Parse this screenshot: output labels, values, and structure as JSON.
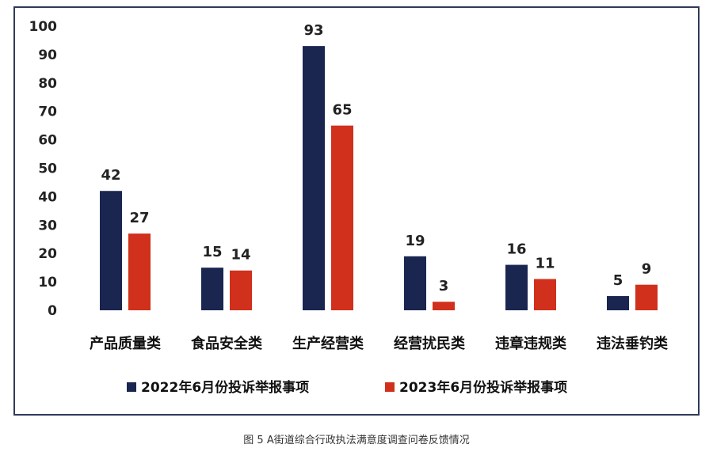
{
  "chart_data": {
    "type": "bar",
    "title": "",
    "categories": [
      "产品质量类",
      "食品安全类",
      "生产经营类",
      "经营扰民类",
      "违章违规类",
      "违法垂钓类"
    ],
    "series": [
      {
        "name": "2022年6月份投诉举报事项",
        "color": "#1a2650",
        "values": [
          42,
          15,
          93,
          19,
          16,
          5
        ]
      },
      {
        "name": "2023年6月份投诉举报事项",
        "color": "#d0301c",
        "values": [
          27,
          14,
          65,
          3,
          11,
          9
        ]
      }
    ],
    "yticks": [
      0,
      10,
      20,
      30,
      40,
      50,
      60,
      70,
      80,
      90,
      100
    ],
    "ylim": [
      0,
      100
    ],
    "grid": false,
    "legend": "bottom",
    "xlabel": "",
    "ylabel": ""
  },
  "caption": "图 5  A街道综合行政执法满意度调查问卷反馈情况"
}
